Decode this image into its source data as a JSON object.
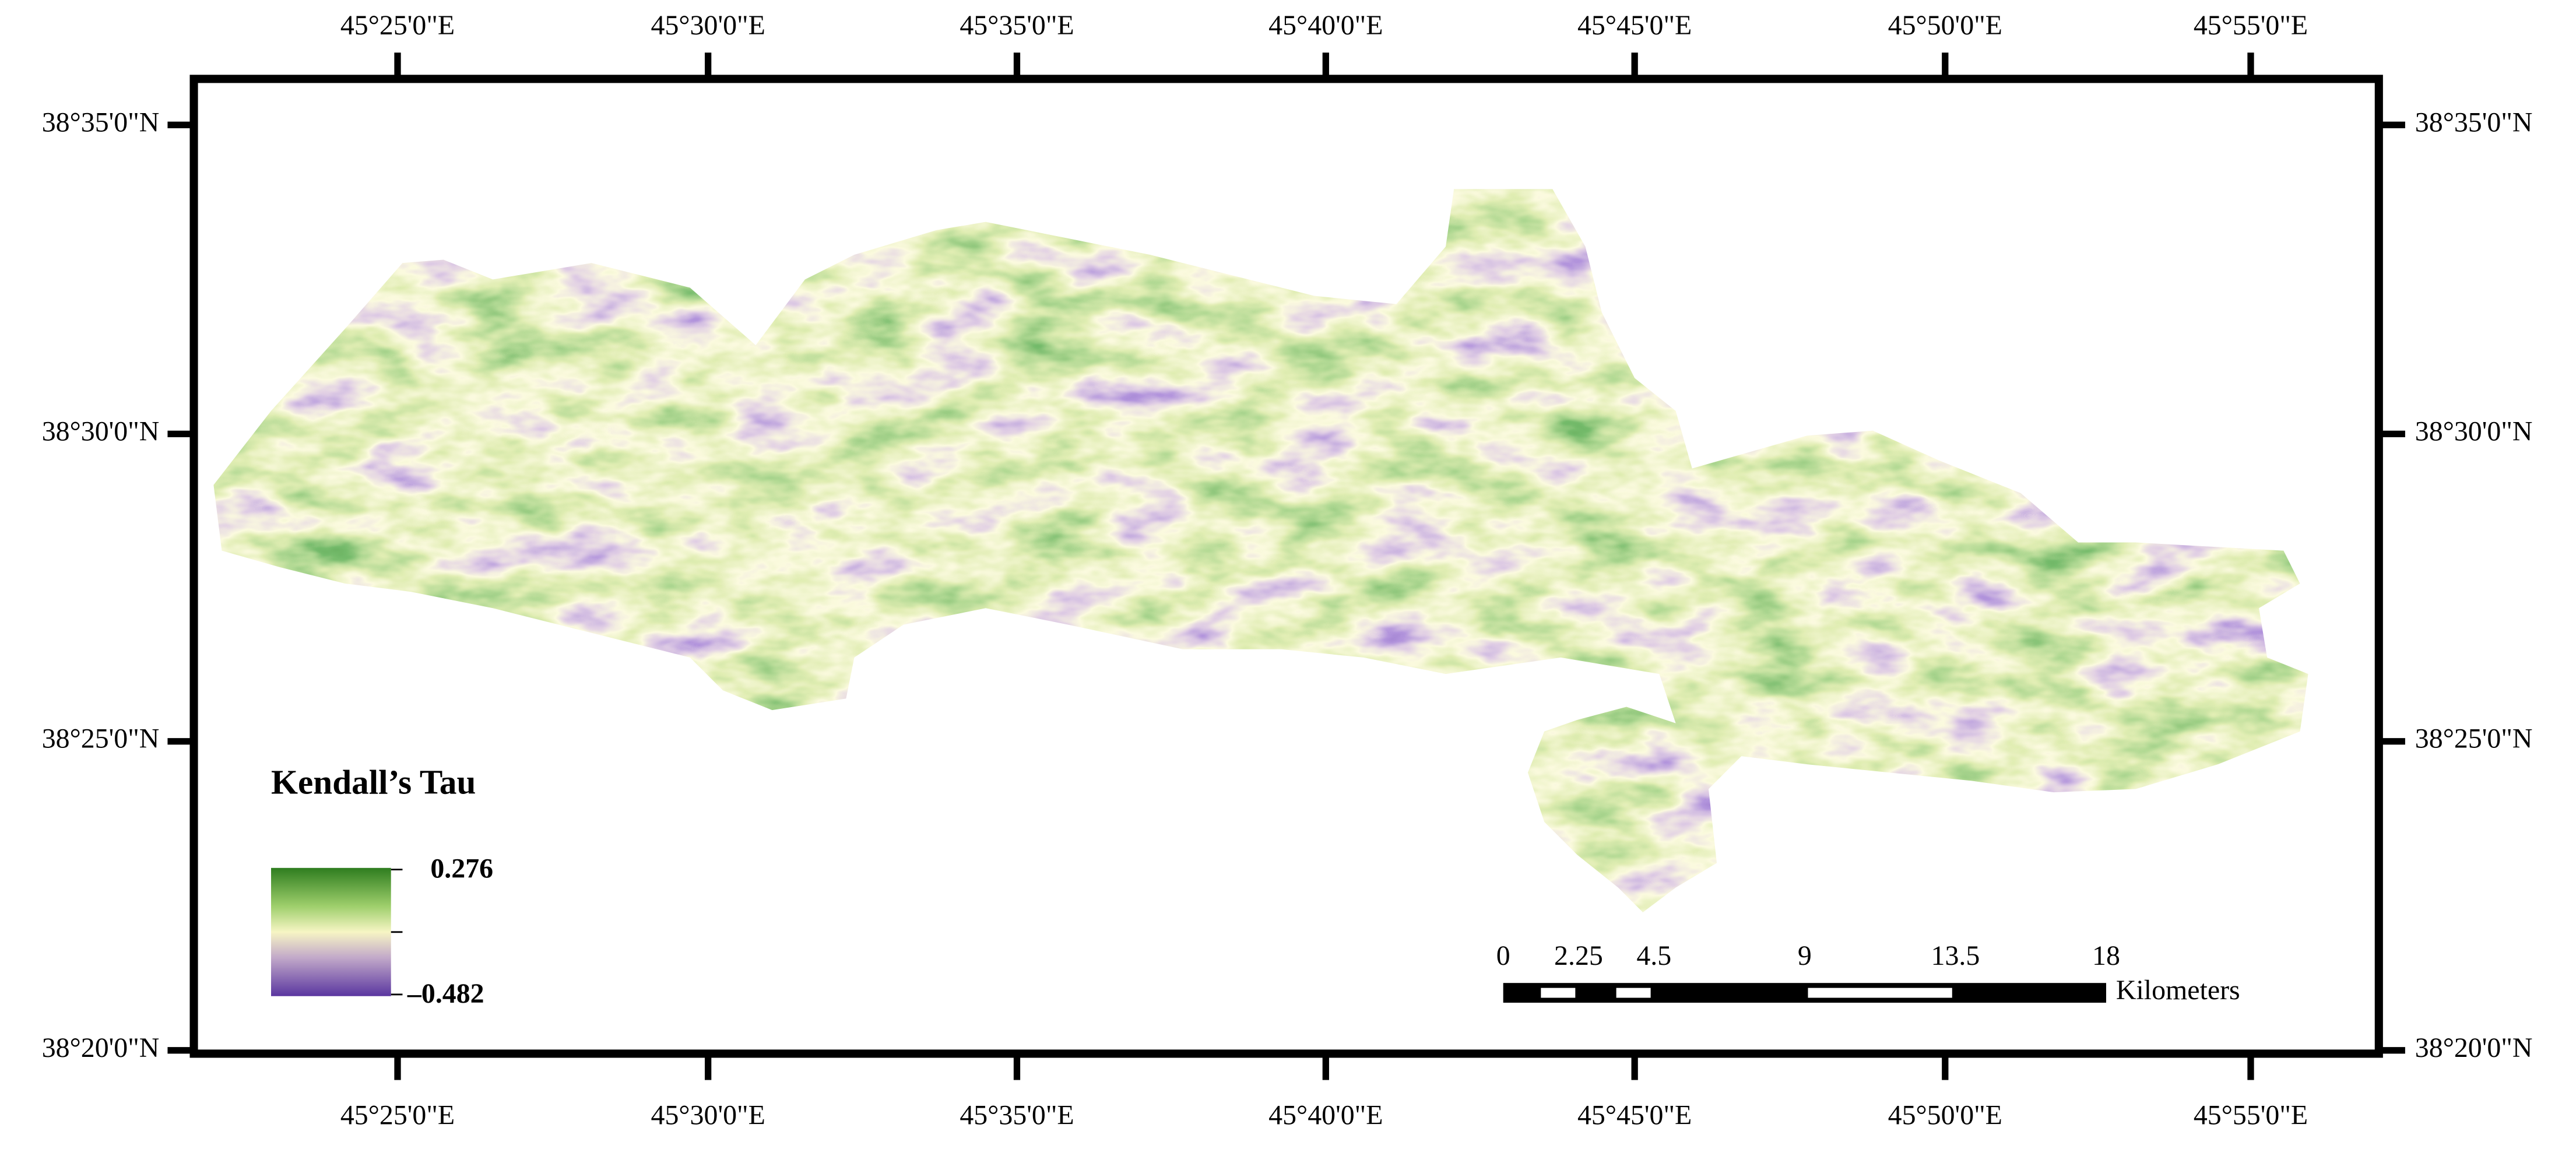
{
  "map": {
    "longitude_labels": [
      "45°25'0\"E",
      "45°30'0\"E",
      "45°35'0\"E",
      "45°40'0\"E",
      "45°45'0\"E",
      "45°50'0\"E",
      "45°55'0\"E"
    ],
    "latitude_labels": [
      "38°35'0\"N",
      "38°30'0\"N",
      "38°25'0\"N",
      "38°20'0\"N"
    ],
    "legend": {
      "title": "Kendall’s Tau",
      "max": "0.276",
      "min": "–0.482"
    },
    "scale_bar": {
      "ticks": [
        0,
        2.25,
        4.5,
        9,
        13.5,
        18
      ],
      "unit": "Kilometers"
    }
  }
}
